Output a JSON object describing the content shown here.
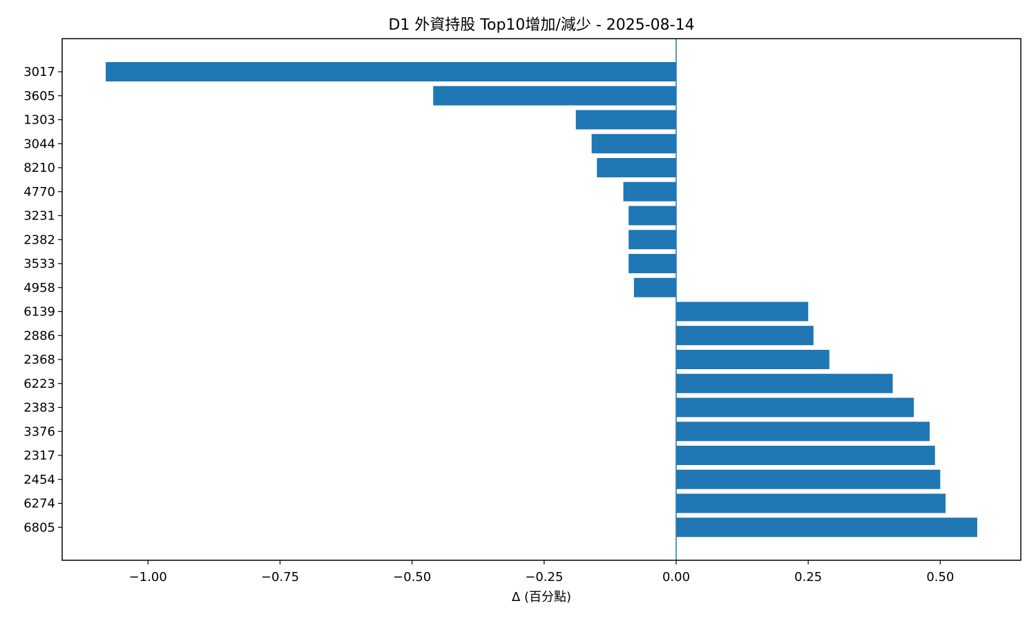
{
  "chart_data": {
    "type": "bar",
    "orientation": "horizontal",
    "title": "D1 外資持股 Top10增加/減少 - 2025-08-14",
    "xlabel": "Δ (百分點)",
    "ylabel": "",
    "categories": [
      "3017",
      "3605",
      "1303",
      "3044",
      "8210",
      "4770",
      "3231",
      "2382",
      "3533",
      "4958",
      "6139",
      "2886",
      "2368",
      "6223",
      "2383",
      "3376",
      "2317",
      "2454",
      "6274",
      "6805"
    ],
    "values": [
      -1.08,
      -0.46,
      -0.19,
      -0.16,
      -0.15,
      -0.1,
      -0.09,
      -0.09,
      -0.09,
      -0.08,
      0.25,
      0.26,
      0.29,
      0.41,
      0.45,
      0.48,
      0.49,
      0.5,
      0.51,
      0.57
    ],
    "xlim": [
      -1.1625,
      0.6525
    ],
    "xticks": [
      -1.0,
      -0.75,
      -0.5,
      -0.25,
      0.0,
      0.25,
      0.5
    ],
    "xtick_labels": [
      "−1.00",
      "−0.75",
      "−0.50",
      "−0.25",
      "0.00",
      "0.25",
      "0.50"
    ],
    "zero_line": true,
    "grid": false,
    "legend": "none",
    "colors": {
      "bar": "#1f77b4",
      "zero_line": "#1f77b4",
      "axes": "#000000"
    }
  }
}
